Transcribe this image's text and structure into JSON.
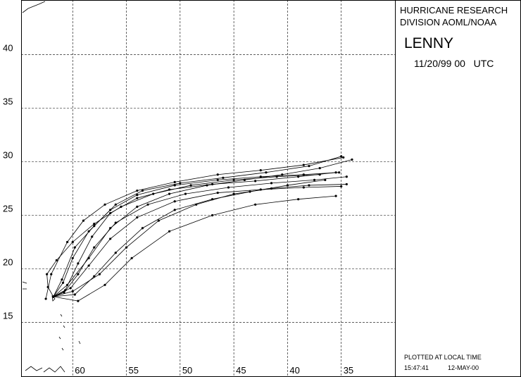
{
  "chart_data": {
    "type": "line",
    "header": [
      "HURRICANE RESEARCH",
      "DIVISION AOML/NOAA"
    ],
    "storm_name": "LENNY",
    "date_time": "11/20/99 00   UTC",
    "footer": {
      "note": "PLOTTED AT LOCAL TIME",
      "time": "15:47:41",
      "date": "12-MAY-00"
    },
    "xlim": [
      64.8,
      30
    ],
    "ylim": [
      9.9,
      45.1
    ],
    "xticks": [
      60,
      55,
      50,
      45,
      40,
      35
    ],
    "yticks": [
      15,
      20,
      25,
      30,
      35,
      40
    ],
    "grid": true,
    "color": "#000000",
    "series": [
      {
        "x": [
          61.8,
          60.5,
          58.5,
          56.5,
          54,
          51,
          47.5,
          44,
          40.5,
          37,
          34
        ],
        "values": [
          17.4,
          18.5,
          21,
          23.8,
          25.8,
          27,
          27.8,
          28.3,
          28.8,
          29.4,
          30.2
        ]
      },
      {
        "x": [
          61.8,
          60.8,
          59.5,
          58,
          56,
          53,
          49.5,
          45.5,
          41.5,
          37.5,
          34.5
        ],
        "values": [
          17.4,
          17.8,
          19.5,
          22,
          24.3,
          26,
          27,
          27.6,
          28,
          28.3,
          28.6
        ]
      },
      {
        "x": [
          61.8,
          61,
          59.8,
          58,
          56,
          53.5,
          50,
          46,
          42,
          38,
          35
        ],
        "values": [
          17.4,
          19,
          22,
          24,
          26,
          27.3,
          28,
          28.5,
          29,
          29.6,
          30.5
        ]
      },
      {
        "x": [
          61.8,
          60,
          57.5,
          55,
          52,
          48.5,
          45,
          41.5,
          38,
          34.5
        ],
        "values": [
          17.4,
          17.9,
          19.5,
          22,
          24.5,
          26,
          27,
          27.5,
          27.8,
          27.9
        ]
      },
      {
        "x": [
          61.8,
          59.5,
          57,
          54.5,
          51,
          47,
          43,
          39,
          35.5
        ],
        "values": [
          17.4,
          17,
          18.5,
          21,
          23.5,
          25,
          26,
          26.5,
          26.8
        ]
      },
      {
        "x": [
          61.8,
          60.7,
          59.5,
          58.2,
          56.5,
          54,
          51,
          47,
          43,
          39,
          35.5
        ],
        "values": [
          17.4,
          18,
          20.5,
          23,
          25.2,
          26.6,
          27.4,
          27.9,
          28.2,
          28.6,
          29
        ]
      },
      {
        "x": [
          62.5,
          62,
          60.5,
          59,
          57,
          54,
          50.5,
          46.5,
          42.5,
          38.5,
          34.8
        ],
        "values": [
          17.2,
          19.5,
          22.5,
          24.5,
          26,
          27.3,
          28.1,
          28.8,
          29.2,
          29.7,
          30.4
        ]
      },
      {
        "x": [
          61.8,
          60.2,
          58.5,
          56.5,
          54,
          50.5,
          46.5,
          42.5,
          38.5,
          35
        ],
        "values": [
          17.4,
          18.2,
          20.3,
          22.8,
          24.8,
          26.3,
          27.1,
          27.4,
          27.6,
          27.7
        ]
      },
      {
        "x": [
          61.8,
          60.9,
          60,
          58.5,
          56.5,
          54,
          50.5,
          46.5,
          42.5,
          38.5,
          35.2
        ],
        "values": [
          17.4,
          18.7,
          21,
          23.5,
          25.5,
          26.9,
          27.8,
          28.3,
          28.6,
          28.8,
          29
        ]
      },
      {
        "x": [
          61.8,
          59.8,
          58,
          56,
          53.5,
          50.5,
          47,
          43.5,
          40,
          36.5
        ],
        "values": [
          17.4,
          17.6,
          19.3,
          21.5,
          23.8,
          25.5,
          26.5,
          27.2,
          27.8,
          28.3
        ]
      },
      {
        "x": [
          61.8,
          62.3,
          62.4,
          61.5,
          60,
          58,
          55.5,
          52.5,
          49,
          45,
          41,
          37
        ],
        "values": [
          17.4,
          18.3,
          19.5,
          20.8,
          22.5,
          24.2,
          25.8,
          27,
          27.8,
          28.3,
          28.6,
          28.8
        ]
      }
    ]
  }
}
